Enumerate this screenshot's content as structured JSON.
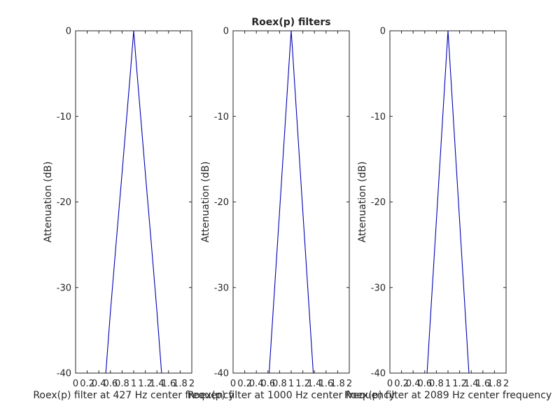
{
  "figure": {
    "background": "#ffffff",
    "axis_color": "#262626"
  },
  "chart_data": [
    {
      "type": "line",
      "title": "",
      "xlabel": "Roex(p) filter at 427 Hz center frequency",
      "ylabel": "Attenuation (dB)",
      "xlim": [
        0,
        2
      ],
      "ylim": [
        -40,
        0
      ],
      "xticks": [
        0,
        0.2,
        0.4,
        0.6,
        0.8,
        1,
        1.2,
        1.4,
        1.6,
        1.8,
        2
      ],
      "xticklabels": [
        "0",
        "0.2",
        "0.4",
        "0.6",
        "0.8",
        "1",
        "1.2",
        "1.4",
        "1.6",
        "1.8",
        "2"
      ],
      "yticks": [
        -40,
        -30,
        -20,
        -10,
        0
      ],
      "yticklabels": [
        "-40",
        "-30",
        "-20",
        "-10",
        "0"
      ],
      "grid": false,
      "series": [
        {
          "color": "#0000b3",
          "x": [
            0.52,
            0.6,
            0.7,
            0.8,
            0.9,
            0.95,
            0.98,
            1.0,
            1.02,
            1.05,
            1.1,
            1.2,
            1.3,
            1.4,
            1.48
          ],
          "y": [
            -40,
            -32.8,
            -24.6,
            -16.6,
            -8.4,
            -4.3,
            -1.7,
            0,
            -1.7,
            -4.3,
            -8.4,
            -16.6,
            -24.6,
            -32.8,
            -40
          ]
        }
      ]
    },
    {
      "type": "line",
      "title": "Roex(p) filters",
      "xlabel": "Roex(p) filter at 1000 Hz center frequency",
      "ylabel": "Attenuation (dB)",
      "xlim": [
        0,
        2
      ],
      "ylim": [
        -40,
        0
      ],
      "xticks": [
        0,
        0.2,
        0.4,
        0.6,
        0.8,
        1,
        1.2,
        1.4,
        1.6,
        1.8,
        2
      ],
      "xticklabels": [
        "0",
        "0.2",
        "0.4",
        "0.6",
        "0.8",
        "1",
        "1.2",
        "1.4",
        "1.6",
        "1.8",
        "2"
      ],
      "yticks": [
        -40,
        -30,
        -20,
        -10,
        0
      ],
      "yticklabels": [
        "-40",
        "-30",
        "-20",
        "-10",
        "0"
      ],
      "grid": false,
      "series": [
        {
          "color": "#0000b3",
          "x": [
            0.62,
            0.7,
            0.8,
            0.9,
            0.95,
            0.98,
            1.0,
            1.02,
            1.05,
            1.1,
            1.2,
            1.3,
            1.38
          ],
          "y": [
            -40,
            -31.6,
            -21.1,
            -10.5,
            -5.2,
            -2.0,
            0,
            -2.0,
            -5.2,
            -10.5,
            -21.1,
            -31.6,
            -40
          ]
        }
      ]
    },
    {
      "type": "line",
      "title": "",
      "xlabel": "Roex(p) filter at 2089 Hz center frequency",
      "ylabel": "Attenuation (dB)",
      "xlim": [
        0,
        2
      ],
      "ylim": [
        -40,
        0
      ],
      "xticks": [
        0,
        0.2,
        0.4,
        0.6,
        0.8,
        1,
        1.2,
        1.4,
        1.6,
        1.8,
        2
      ],
      "xticklabels": [
        "0",
        "0.2",
        "0.4",
        "0.6",
        "0.8",
        "1",
        "1.2",
        "1.4",
        "1.6",
        "1.8",
        "2"
      ],
      "yticks": [
        -40,
        -30,
        -20,
        -10,
        0
      ],
      "yticklabels": [
        "-40",
        "-30",
        "-20",
        "-10",
        "0"
      ],
      "grid": false,
      "series": [
        {
          "color": "#0000b3",
          "x": [
            0.64,
            0.7,
            0.8,
            0.9,
            0.95,
            0.98,
            1.0,
            1.02,
            1.05,
            1.1,
            1.2,
            1.3,
            1.36
          ],
          "y": [
            -40,
            -33.3,
            -22.2,
            -11.1,
            -5.5,
            -2.2,
            0,
            -2.2,
            -5.5,
            -11.1,
            -22.2,
            -33.3,
            -40
          ]
        }
      ]
    }
  ]
}
